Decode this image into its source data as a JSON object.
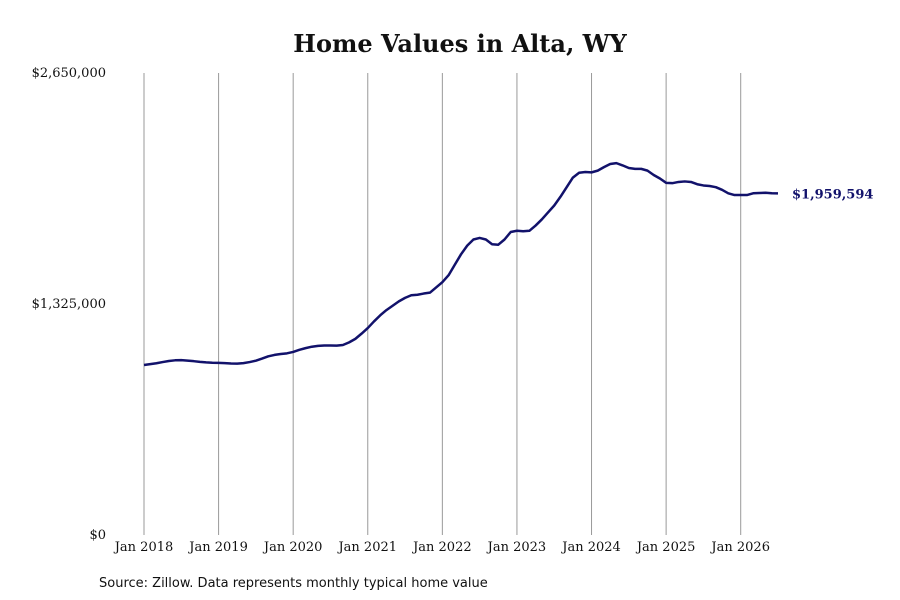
{
  "chart_data": {
    "type": "line",
    "title": "Home Values in Alta, WY",
    "source": "Source: Zillow. Data represents monthly typical home value",
    "x": [
      "2018-01",
      "2018-02",
      "2018-03",
      "2018-04",
      "2018-05",
      "2018-06",
      "2018-07",
      "2018-08",
      "2018-09",
      "2018-10",
      "2018-11",
      "2018-12",
      "2019-01",
      "2019-02",
      "2019-03",
      "2019-04",
      "2019-05",
      "2019-06",
      "2019-07",
      "2019-08",
      "2019-09",
      "2019-10",
      "2019-11",
      "2019-12",
      "2020-01",
      "2020-02",
      "2020-03",
      "2020-04",
      "2020-05",
      "2020-06",
      "2020-07",
      "2020-08",
      "2020-09",
      "2020-10",
      "2020-11",
      "2020-12",
      "2021-01",
      "2021-02",
      "2021-03",
      "2021-04",
      "2021-05",
      "2021-06",
      "2021-07",
      "2021-08",
      "2021-09",
      "2021-10",
      "2021-11",
      "2021-12",
      "2022-01",
      "2022-02",
      "2022-03",
      "2022-04",
      "2022-05",
      "2022-06",
      "2022-07",
      "2022-08",
      "2022-09",
      "2022-10",
      "2022-11",
      "2022-12",
      "2023-01",
      "2023-02",
      "2023-03",
      "2023-04",
      "2023-05",
      "2023-06",
      "2023-07",
      "2023-08",
      "2023-09",
      "2023-10",
      "2023-11",
      "2023-12",
      "2024-01",
      "2024-02",
      "2024-03",
      "2024-04",
      "2024-05",
      "2024-06",
      "2024-07",
      "2024-08",
      "2024-09",
      "2024-10",
      "2024-11",
      "2024-12",
      "2025-01",
      "2025-02",
      "2025-03",
      "2025-04",
      "2025-05",
      "2025-06",
      "2025-07",
      "2025-08",
      "2025-09",
      "2025-10",
      "2025-11",
      "2025-12",
      "2026-01",
      "2026-02",
      "2026-03",
      "2026-04",
      "2026-05",
      "2026-06",
      "2026-07"
    ],
    "series": [
      {
        "color": "#12126b",
        "values": [
          975000,
          980000,
          985000,
          992000,
          998000,
          1002000,
          1003000,
          1000000,
          997000,
          993000,
          990000,
          988000,
          987000,
          986000,
          984000,
          983000,
          986000,
          992000,
          1000000,
          1012000,
          1025000,
          1033000,
          1038000,
          1042000,
          1050000,
          1062000,
          1072000,
          1080000,
          1085000,
          1087000,
          1087000,
          1086000,
          1090000,
          1105000,
          1125000,
          1155000,
          1187000,
          1225000,
          1260000,
          1290000,
          1315000,
          1340000,
          1360000,
          1375000,
          1378000,
          1385000,
          1390000,
          1420000,
          1450000,
          1490000,
          1550000,
          1610000,
          1660000,
          1695000,
          1704000,
          1695000,
          1668000,
          1665000,
          1695000,
          1738000,
          1745000,
          1742000,
          1745000,
          1775000,
          1810000,
          1850000,
          1890000,
          1940000,
          1995000,
          2050000,
          2078000,
          2082000,
          2080000,
          2090000,
          2110000,
          2128000,
          2133000,
          2120000,
          2105000,
          2100000,
          2100000,
          2090000,
          2065000,
          2045000,
          2020000,
          2018000,
          2025000,
          2028000,
          2025000,
          2012000,
          2005000,
          2002000,
          1995000,
          1980000,
          1960000,
          1950000,
          1950000,
          1950000,
          1960000,
          1962000,
          1963000,
          1960000,
          1959594
        ],
        "value_labels": [
          null,
          null,
          null,
          null,
          null,
          null,
          null,
          null,
          null,
          null,
          null,
          null,
          null,
          null,
          null,
          null,
          null,
          null,
          null,
          null,
          null,
          null,
          null,
          null,
          null,
          null,
          null,
          null,
          null,
          null,
          null,
          null,
          null,
          null,
          null,
          null,
          null,
          null,
          null,
          null,
          null,
          null,
          null,
          null,
          null,
          null,
          null,
          null,
          null,
          null,
          null,
          null,
          null,
          null,
          null,
          null,
          null,
          null,
          null,
          null,
          null,
          null,
          null,
          null,
          null,
          null,
          null,
          null,
          null,
          null,
          null,
          null,
          null,
          null,
          null,
          null,
          null,
          null,
          null,
          null,
          null,
          null,
          null,
          null,
          null,
          null,
          null,
          null,
          null,
          null,
          null,
          null,
          null,
          null,
          null,
          null,
          null,
          null,
          null,
          null,
          null,
          null,
          "$1,959,594"
        ]
      }
    ],
    "xlim": [
      "2018-01",
      "2026-07"
    ],
    "xticks": [
      {
        "value": "2018-01",
        "label": "Jan 2018"
      },
      {
        "value": "2019-01",
        "label": "Jan 2019"
      },
      {
        "value": "2020-01",
        "label": "Jan 2020"
      },
      {
        "value": "2021-01",
        "label": "Jan 2021"
      },
      {
        "value": "2022-01",
        "label": "Jan 2022"
      },
      {
        "value": "2023-01",
        "label": "Jan 2023"
      },
      {
        "value": "2024-01",
        "label": "Jan 2024"
      },
      {
        "value": "2025-01",
        "label": "Jan 2025"
      },
      {
        "value": "2026-01",
        "label": "Jan 2026"
      }
    ],
    "ylim": [
      0,
      2650000
    ],
    "yticks": [
      {
        "value": 0,
        "label": "$0"
      },
      {
        "value": 1325000,
        "label": "$1,325,000"
      },
      {
        "value": 2650000,
        "label": "$2,650,000"
      }
    ],
    "grid": true
  }
}
